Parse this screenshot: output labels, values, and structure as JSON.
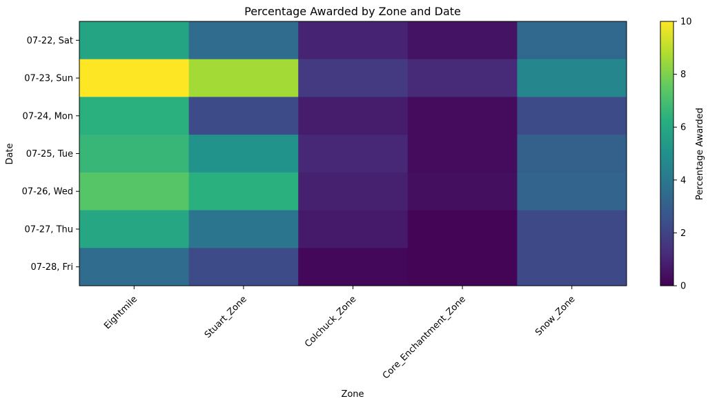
{
  "chart_data": {
    "type": "heatmap",
    "title": "Percentage Awarded by Zone and Date",
    "xlabel": "Zone",
    "ylabel": "Date",
    "x_categories": [
      "Eightmile",
      "Stuart_Zone",
      "Colchuck_Zone",
      "Core_Enchantment_Zone",
      "Snow_Zone"
    ],
    "y_categories": [
      "07-22, Sat",
      "07-23, Sun",
      "07-24, Mon",
      "07-25, Tue",
      "07-26, Wed",
      "07-27, Thu",
      "07-28, Fri"
    ],
    "values": [
      [
        5.8,
        3.5,
        1.0,
        0.5,
        3.4
      ],
      [
        10.0,
        8.6,
        1.7,
        1.2,
        4.6
      ],
      [
        6.3,
        2.3,
        0.8,
        0.3,
        2.3
      ],
      [
        6.6,
        5.1,
        1.1,
        0.3,
        3.1
      ],
      [
        7.3,
        6.3,
        0.9,
        0.4,
        3.2
      ],
      [
        5.9,
        3.9,
        0.7,
        0.1,
        2.2
      ],
      [
        3.5,
        2.3,
        0.2,
        0.1,
        2.2
      ]
    ],
    "colorbar": {
      "label": "Percentage Awarded",
      "range": [
        0,
        10
      ],
      "ticks": [
        "0",
        "2",
        "4",
        "6",
        "8",
        "10"
      ]
    },
    "colormap": "viridis",
    "grid": false
  }
}
